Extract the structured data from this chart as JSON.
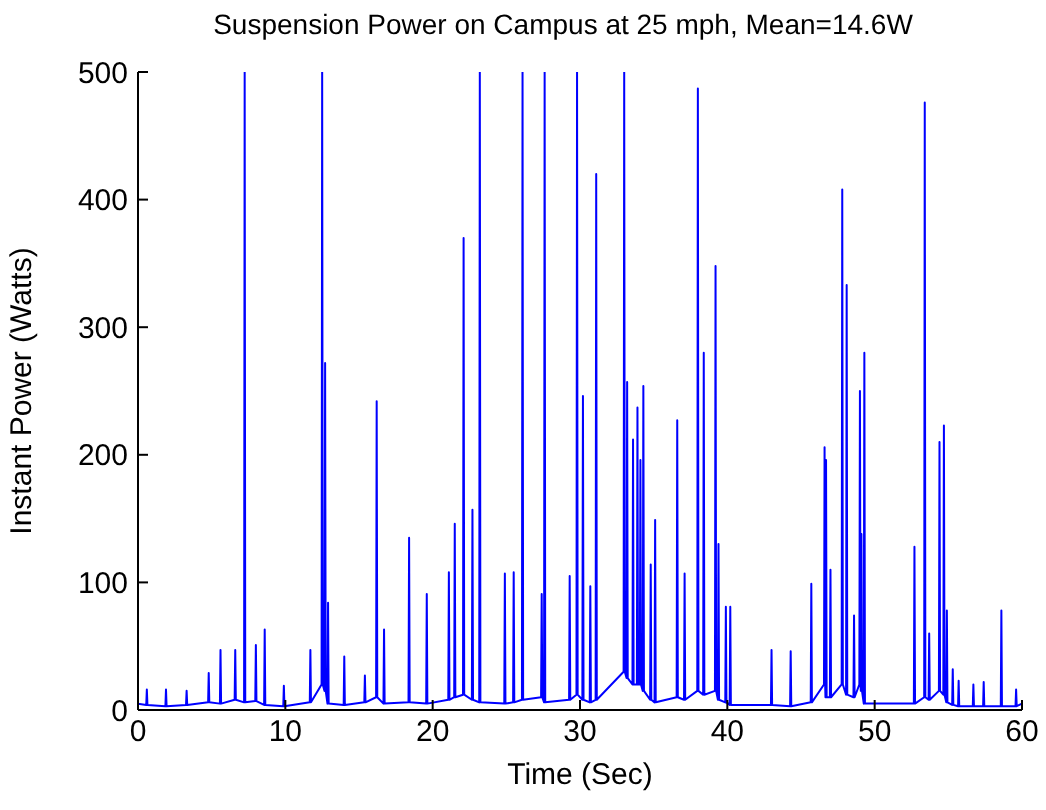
{
  "chart_data": {
    "type": "line",
    "title": "Suspension Power on Campus at 25 mph, Mean=14.6W",
    "xlabel": "Time (Sec)",
    "ylabel": "Instant Power (Watts)",
    "x": [
      0,
      0.56,
      0.6,
      0.64,
      1.86,
      1.9,
      1.94,
      3.26,
      3.3,
      3.34,
      4.76,
      4.8,
      4.84,
      5.56,
      5.6,
      5.64,
      6.56,
      6.6,
      6.64,
      7.2,
      7.24,
      7.28,
      7.96,
      8.0,
      8.04,
      8.56,
      8.6,
      8.64,
      9.86,
      9.9,
      9.94,
      11.66,
      11.7,
      11.74,
      12.46,
      12.5,
      12.54,
      12.66,
      12.7,
      12.74,
      12.86,
      12.9,
      12.94,
      13.96,
      14.0,
      14.04,
      15.36,
      15.4,
      15.44,
      16.16,
      16.2,
      16.24,
      16.66,
      16.7,
      16.74,
      18.36,
      18.4,
      18.44,
      19.56,
      19.6,
      19.64,
      21.06,
      21.1,
      21.14,
      21.46,
      21.5,
      21.54,
      22.06,
      22.1,
      22.14,
      22.66,
      22.7,
      22.74,
      23.16,
      23.2,
      23.24,
      24.86,
      24.9,
      24.94,
      25.46,
      25.5,
      25.54,
      26.06,
      26.1,
      26.14,
      27.36,
      27.4,
      27.44,
      27.56,
      27.6,
      27.64,
      29.26,
      29.3,
      29.34,
      29.76,
      29.8,
      29.84,
      30.16,
      30.2,
      30.24,
      30.66,
      30.7,
      30.74,
      31.06,
      31.1,
      31.14,
      32.96,
      33.0,
      33.04,
      33.16,
      33.2,
      33.24,
      33.56,
      33.6,
      33.64,
      33.86,
      33.9,
      33.94,
      34.06,
      34.1,
      34.14,
      34.26,
      34.3,
      34.34,
      34.76,
      34.8,
      34.84,
      35.06,
      35.1,
      35.14,
      36.56,
      36.6,
      36.64,
      37.06,
      37.1,
      37.14,
      37.96,
      38.0,
      38.04,
      38.36,
      38.4,
      38.44,
      39.16,
      39.2,
      39.24,
      39.36,
      39.4,
      39.44,
      39.86,
      39.9,
      39.94,
      40.16,
      40.2,
      40.24,
      42.96,
      43.0,
      43.04,
      44.26,
      44.3,
      44.34,
      45.66,
      45.7,
      45.74,
      46.56,
      46.6,
      46.64,
      46.66,
      46.7,
      46.74,
      46.96,
      47.0,
      47.04,
      47.76,
      47.8,
      47.84,
      48.06,
      48.1,
      48.14,
      48.56,
      48.6,
      48.64,
      48.96,
      49.0,
      49.04,
      49.06,
      49.1,
      49.14,
      49.26,
      49.3,
      49.34,
      52.66,
      52.7,
      52.74,
      53.36,
      53.4,
      53.44,
      53.66,
      53.7,
      53.74,
      54.36,
      54.4,
      54.44,
      54.66,
      54.7,
      54.74,
      54.86,
      54.9,
      54.94,
      55.26,
      55.3,
      55.34,
      55.66,
      55.7,
      55.74,
      56.66,
      56.7,
      56.74,
      57.36,
      57.4,
      57.44,
      58.56,
      58.6,
      58.64,
      59.56,
      59.6,
      59.64,
      60
    ],
    "series": [
      {
        "color": "#0000ff",
        "values": [
          5,
          4,
          16,
          4,
          3,
          16,
          3,
          4,
          15,
          4,
          6,
          29,
          6,
          5,
          47,
          5,
          8,
          47,
          8,
          6,
          500,
          6,
          7,
          51,
          7,
          4,
          63,
          4,
          3,
          19,
          3,
          6,
          47,
          6,
          20,
          500,
          20,
          15,
          272,
          15,
          5,
          84,
          5,
          4,
          42,
          4,
          6,
          27,
          6,
          10,
          242,
          10,
          5,
          63,
          5,
          6,
          135,
          6,
          5,
          91,
          5,
          8,
          108,
          8,
          10,
          146,
          10,
          12,
          370,
          12,
          8,
          157,
          8,
          6,
          500,
          6,
          5,
          107,
          5,
          6,
          108,
          6,
          8,
          500,
          8,
          10,
          91,
          10,
          6,
          500,
          6,
          8,
          105,
          8,
          12,
          500,
          12,
          8,
          246,
          8,
          6,
          97,
          6,
          8,
          420,
          8,
          30,
          500,
          30,
          25,
          257,
          25,
          20,
          212,
          20,
          20,
          237,
          20,
          20,
          196,
          20,
          15,
          254,
          15,
          8,
          114,
          8,
          6,
          149,
          6,
          10,
          227,
          10,
          8,
          107,
          8,
          15,
          487,
          15,
          12,
          280,
          12,
          15,
          348,
          15,
          8,
          130,
          8,
          6,
          81,
          6,
          4,
          81,
          4,
          4,
          47,
          4,
          3,
          46,
          3,
          6,
          99,
          6,
          20,
          206,
          20,
          10,
          196,
          10,
          10,
          110,
          10,
          20,
          408,
          20,
          12,
          333,
          12,
          10,
          74,
          10,
          20,
          250,
          20,
          15,
          138,
          15,
          5,
          280,
          5,
          5,
          128,
          5,
          10,
          476,
          10,
          8,
          60,
          8,
          15,
          210,
          15,
          12,
          223,
          12,
          6,
          78,
          6,
          4,
          32,
          4,
          3,
          23,
          3,
          3,
          20,
          3,
          3,
          22,
          3,
          3,
          78,
          3,
          3,
          16,
          3,
          5
        ]
      }
    ],
    "xlim": [
      0,
      60
    ],
    "xticks": [
      0,
      10,
      20,
      30,
      40,
      50,
      60
    ],
    "ylim": [
      0,
      500
    ],
    "yticks": [
      0,
      100,
      200,
      300,
      400,
      500
    ],
    "grid": false,
    "legend": false,
    "marker": "none",
    "line_style": "solid"
  }
}
